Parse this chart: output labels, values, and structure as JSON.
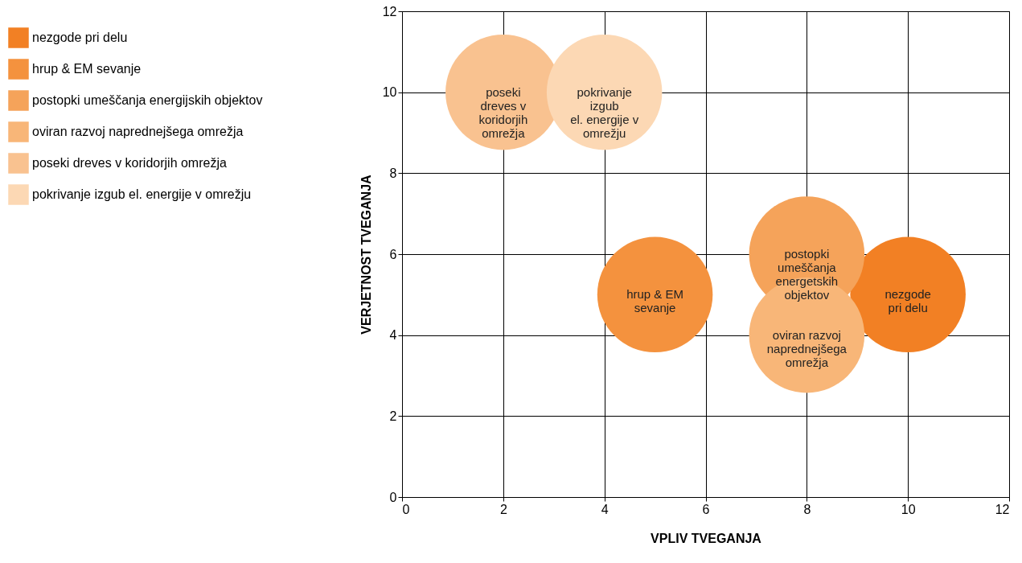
{
  "chart_data": {
    "type": "bubble",
    "xlabel": "VPLIV TVEGANJA",
    "ylabel": "VERJETNOST TVEGANJA",
    "xlim": [
      0,
      12
    ],
    "ylim": [
      0,
      12
    ],
    "xticks": [
      0,
      2,
      4,
      6,
      8,
      10,
      12
    ],
    "yticks": [
      0,
      2,
      4,
      6,
      8,
      10,
      12
    ],
    "grid": true,
    "legend": "left",
    "series": [
      {
        "name": "nezgode pri delu",
        "color": "#f28024",
        "x": [
          10
        ],
        "values": [
          5
        ],
        "sizes": [
          1
        ]
      },
      {
        "name": "hrup & EM sevanje",
        "color": "#f4923e",
        "x": [
          5
        ],
        "values": [
          5
        ],
        "sizes": [
          1
        ]
      },
      {
        "name": "postopki umeščanja energijskih objektov",
        "color": "#f5a35a",
        "x": [
          8
        ],
        "values": [
          6
        ],
        "sizes": [
          1
        ]
      },
      {
        "name": "oviran razvoj naprednejšega omrežja",
        "color": "#f8b678",
        "x": [
          8
        ],
        "values": [
          4
        ],
        "sizes": [
          1
        ]
      },
      {
        "name": "poseki dreves v koridorjih omrežja",
        "color": "#f9c290",
        "x": [
          2
        ],
        "values": [
          10
        ],
        "sizes": [
          1
        ]
      },
      {
        "name": "pokrivanje izgub el. energije v omrežju",
        "color": "#fcd8b4",
        "x": [
          4
        ],
        "values": [
          10
        ],
        "sizes": [
          1
        ]
      }
    ],
    "annotations": [
      {
        "text": "nezgode\npri delu",
        "x": 10,
        "y": 5
      },
      {
        "text": "hrup & EM\nsevanje",
        "x": 5,
        "y": 5
      },
      {
        "text": "postopki\numeščanja\nenergetskih\nobjektov",
        "x": 8,
        "y": 6
      },
      {
        "text": "oviran razvoj\nnaprednejšega\nomrežja",
        "x": 8,
        "y": 4
      },
      {
        "text": "poseki\ndreves v\nkoridorjih\nomrežja",
        "x": 2,
        "y": 10
      },
      {
        "text": "pokrivanje\nizgub\nel. energije v\nomrežju",
        "x": 4,
        "y": 10
      }
    ]
  }
}
